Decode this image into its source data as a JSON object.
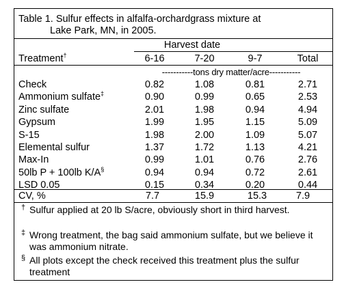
{
  "title": {
    "line1": "Table 1. Sulfur effects in alfalfa-orchardgrass mixture at",
    "line2": "Lake Park, MN, in 2005."
  },
  "header": {
    "group_label": "Harvest date",
    "treatment_label": "Treatment",
    "treatment_mark": "†",
    "columns": [
      "6-16",
      "7-20",
      "9-7",
      "Total"
    ],
    "units": "-----------tons dry matter/acre-----------"
  },
  "rows": [
    {
      "name": "Check",
      "mark": "",
      "values": [
        "0.82",
        "1.08",
        "0.81",
        "2.71"
      ]
    },
    {
      "name": "Ammonium sulfate",
      "mark": "‡",
      "values": [
        "0.90",
        "0.99",
        "0.65",
        "2.53"
      ]
    },
    {
      "name": "Zinc sulfate",
      "mark": "",
      "values": [
        "2.01",
        "1.98",
        "0.94",
        "4.94"
      ]
    },
    {
      "name": "Gypsum",
      "mark": "",
      "values": [
        "1.99",
        "1.95",
        "1.15",
        "5.09"
      ]
    },
    {
      "name": "S-15",
      "mark": "",
      "values": [
        "1.98",
        "2.00",
        "1.09",
        "5.07"
      ]
    },
    {
      "name": "Elemental sulfur",
      "mark": "",
      "values": [
        "1.37",
        "1.72",
        "1.13",
        "4.21"
      ]
    },
    {
      "name": "Max-In",
      "mark": "",
      "values": [
        "0.99",
        "1.01",
        "0.76",
        "2.76"
      ]
    },
    {
      "name": "50lb P + 100lb K/A",
      "mark": "§",
      "values": [
        "0.94",
        "0.94",
        "0.72",
        "2.61"
      ]
    },
    {
      "name": "LSD 0.05",
      "mark": "",
      "values": [
        "0.15",
        "0.34",
        "0.20",
        "0.44"
      ]
    }
  ],
  "cv_row": {
    "name": "CV, %",
    "values": [
      "7.7",
      "15.9",
      "15.3",
      "7.9"
    ]
  },
  "footnotes": [
    {
      "mark": "†",
      "text": "Sulfur applied at 20 lb S/acre, obviously short in third harvest."
    },
    {
      "mark": "‡",
      "text": "Wrong treatment, the bag said ammonium sulfate, but we believe it was ammonium nitrate."
    },
    {
      "mark": "§",
      "text": "All plots except the check received this treatment plus the sulfur treatment"
    }
  ]
}
